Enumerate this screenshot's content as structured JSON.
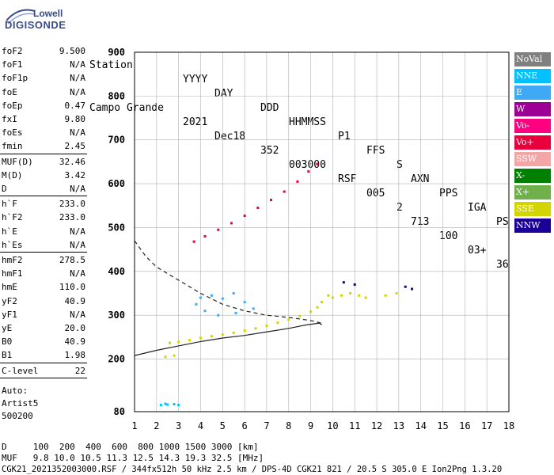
{
  "logo": {
    "brand_top": "Lowell",
    "brand_bottom": "DIGISONDE"
  },
  "header": {
    "labels": [
      "Station",
      "YYYY",
      "DAY",
      "DDD",
      "HHMMSS",
      "P1",
      "FFS",
      "S",
      "AXN",
      "PPS",
      "IGA",
      "PS"
    ],
    "values": [
      "Campo Grande",
      "2021",
      "Dec18",
      "352",
      "003000",
      "RSF",
      "005",
      "2",
      "713",
      "100",
      "03+",
      "36"
    ]
  },
  "params": {
    "group1": [
      {
        "k": "foF2",
        "v": "9.500"
      },
      {
        "k": "foF1",
        "v": "N/A"
      },
      {
        "k": "foF1p",
        "v": "N/A"
      },
      {
        "k": "foE",
        "v": "N/A"
      },
      {
        "k": "foEp",
        "v": "0.47"
      },
      {
        "k": "fxI",
        "v": "9.80"
      },
      {
        "k": "foEs",
        "v": "N/A"
      },
      {
        "k": "fmin",
        "v": "2.45"
      }
    ],
    "group2": [
      {
        "k": "MUF(D)",
        "v": "32.46"
      },
      {
        "k": "M(D)",
        "v": "3.42"
      },
      {
        "k": "D",
        "v": "N/A"
      }
    ],
    "group3": [
      {
        "k": "h`F",
        "v": "233.0"
      },
      {
        "k": "h`F2",
        "v": "233.0"
      },
      {
        "k": "h`E",
        "v": "N/A"
      },
      {
        "k": "h`Es",
        "v": "N/A"
      }
    ],
    "group4": [
      {
        "k": "hmF2",
        "v": "278.5"
      },
      {
        "k": "hmF1",
        "v": "N/A"
      },
      {
        "k": "hmE",
        "v": "110.0"
      },
      {
        "k": "yF2",
        "v": "40.9"
      },
      {
        "k": "yF1",
        "v": "N/A"
      },
      {
        "k": "yE",
        "v": "20.0"
      },
      {
        "k": "B0",
        "v": "40.9"
      },
      {
        "k": "B1",
        "v": "1.98"
      }
    ],
    "group5": [
      {
        "k": "C-level",
        "v": "22"
      }
    ],
    "footer": [
      "Auto:",
      "Artist5",
      "500200"
    ]
  },
  "legend": [
    {
      "label": "NoVal",
      "color": "#808080"
    },
    {
      "label": "NNE",
      "color": "#00c0ff"
    },
    {
      "label": "E",
      "color": "#3fa9f5"
    },
    {
      "label": "W",
      "color": "#9c0095"
    },
    {
      "label": "Vo-",
      "color": "#ff0080"
    },
    {
      "label": "Vo+",
      "color": "#e8003c"
    },
    {
      "label": "SSW",
      "color": "#f4a6a6"
    },
    {
      "label": "X-",
      "color": "#008000"
    },
    {
      "label": "X+",
      "color": "#6fb04a"
    },
    {
      "label": "SSE",
      "color": "#d4d400"
    },
    {
      "label": "NNW",
      "color": "#1a0096"
    }
  ],
  "bottom": {
    "line1": "D     100  200  400  600  800 1000 1500 3000 [km]",
    "line2": "MUF   9.8 10.0 10.5 11.3 12.5 14.3 19.3 32.5 [MHz]",
    "line3": "CGK21_2021352003000.RSF / 344fx512h 50 kHz 2.5 km / DPS-4D CGK21 821 / 20.5 S 305.0 E Ion2Png 1.3.20"
  },
  "chart_data": {
    "type": "scatter",
    "xlim": [
      1,
      18
    ],
    "ylim": [
      80,
      900
    ],
    "x_ticks": [
      1,
      2,
      3,
      4,
      5,
      6,
      7,
      8,
      9,
      10,
      11,
      12,
      13,
      14,
      15,
      16,
      17,
      18
    ],
    "y_ticks": [
      80,
      200,
      300,
      400,
      500,
      600,
      700,
      800,
      900
    ],
    "grid": true,
    "xlabel": "",
    "ylabel": "",
    "series": [
      {
        "color": "#d4d400",
        "points": [
          [
            2.6,
            237
          ],
          [
            3.0,
            239
          ],
          [
            3.5,
            243
          ],
          [
            4.0,
            248
          ],
          [
            4.5,
            252
          ],
          [
            5.0,
            256
          ],
          [
            5.5,
            260
          ],
          [
            6.0,
            265
          ],
          [
            6.5,
            270
          ],
          [
            7.0,
            276
          ],
          [
            7.5,
            283
          ],
          [
            8.0,
            290
          ],
          [
            8.5,
            298
          ],
          [
            9.0,
            308
          ],
          [
            9.3,
            318
          ],
          [
            9.5,
            330
          ],
          [
            9.8,
            345
          ]
        ]
      },
      {
        "color": "#e8003c",
        "points": [
          [
            3.7,
            468
          ],
          [
            4.2,
            480
          ],
          [
            4.8,
            495
          ],
          [
            5.4,
            510
          ],
          [
            6.0,
            527
          ],
          [
            6.6,
            545
          ],
          [
            7.2,
            563
          ],
          [
            7.8,
            582
          ],
          [
            8.4,
            605
          ],
          [
            8.9,
            628
          ],
          [
            9.3,
            645
          ]
        ]
      },
      {
        "color": "#3fa9f5",
        "points": [
          [
            4.0,
            340
          ],
          [
            4.5,
            345
          ],
          [
            5.0,
            338
          ],
          [
            5.5,
            350
          ],
          [
            6.0,
            330
          ],
          [
            4.2,
            310
          ],
          [
            4.8,
            300
          ],
          [
            5.6,
            305
          ],
          [
            6.4,
            315
          ],
          [
            3.8,
            325
          ]
        ]
      },
      {
        "color": "#00c0ff",
        "points": [
          [
            2.2,
            95
          ],
          [
            2.5,
            96
          ],
          [
            2.8,
            97
          ],
          [
            3.0,
            95
          ],
          [
            2.4,
            98
          ]
        ]
      },
      {
        "color": "#d4d400",
        "points": [
          [
            10.0,
            340
          ],
          [
            10.4,
            345
          ],
          [
            10.8,
            350
          ],
          [
            11.2,
            345
          ],
          [
            11.5,
            340
          ],
          [
            12.4,
            345
          ],
          [
            12.9,
            350
          ],
          [
            2.4,
            205
          ],
          [
            2.8,
            208
          ]
        ]
      },
      {
        "color": "#1a0096",
        "points": [
          [
            13.3,
            365
          ],
          [
            13.6,
            360
          ],
          [
            10.5,
            375
          ],
          [
            11.0,
            370
          ]
        ]
      }
    ],
    "model_curves": [
      {
        "style": "solid",
        "points": [
          [
            1.0,
            208
          ],
          [
            2.0,
            220
          ],
          [
            3.0,
            230
          ],
          [
            4.0,
            240
          ],
          [
            5.0,
            248
          ],
          [
            6.0,
            254
          ],
          [
            7.0,
            262
          ],
          [
            8.0,
            270
          ],
          [
            8.8,
            278
          ],
          [
            9.4,
            282
          ],
          [
            9.5,
            278
          ]
        ]
      },
      {
        "style": "dashed",
        "points": [
          [
            1.0,
            470
          ],
          [
            1.5,
            435
          ],
          [
            2.0,
            410
          ],
          [
            3.0,
            380
          ],
          [
            4.0,
            350
          ],
          [
            5.0,
            325
          ],
          [
            6.0,
            310
          ],
          [
            7.0,
            300
          ],
          [
            8.0,
            295
          ],
          [
            9.0,
            288
          ],
          [
            9.5,
            282
          ]
        ]
      }
    ]
  }
}
